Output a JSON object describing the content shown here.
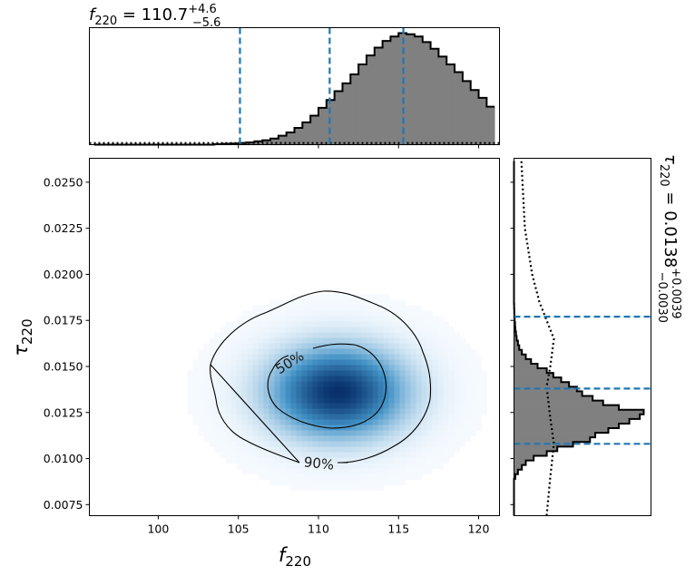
{
  "chart_data": {
    "type": "heatmap",
    "xlabel": {
      "sym": "f",
      "sub": "220"
    },
    "ylabel": {
      "sym": "τ",
      "sub": "220"
    },
    "xlim": [
      95.7,
      121.3
    ],
    "ylim": [
      0.0069,
      0.0263
    ],
    "xticks": [
      "100",
      "105",
      "110",
      "115",
      "120"
    ],
    "xtick_values": [
      100,
      105,
      110,
      115,
      120
    ],
    "yticks": [
      "0.0075",
      "0.0100",
      "0.0125",
      "0.0150",
      "0.0175",
      "0.0200",
      "0.0225",
      "0.0250"
    ],
    "ytick_values": [
      0.0075,
      0.01,
      0.0125,
      0.015,
      0.0175,
      0.02,
      0.0225,
      0.025
    ],
    "density_peak": {
      "x": 111.2,
      "y": 0.0136,
      "sx": 3.1,
      "sy": 0.0018
    },
    "contours": [
      {
        "label": "50%",
        "label_x": 108.4,
        "label_y": 0.0149
      },
      {
        "label": "90%",
        "label_x": 110.0,
        "label_y": 0.0098
      }
    ],
    "top_marginal": {
      "title_prefix": "f",
      "title_sub": "220",
      "title_value": " = 110.7",
      "title_sup": "+4.6",
      "title_low": "−5.6",
      "quantile_lines": [
        105.1,
        110.7,
        115.3
      ],
      "bin_edges_start": 96.0,
      "bin_width": 0.5,
      "counts": [
        0,
        0,
        0,
        0,
        0,
        0,
        0,
        0,
        0,
        0,
        0,
        0,
        0,
        0,
        0,
        0.5,
        0.8,
        1,
        1.5,
        2,
        3,
        4,
        5.5,
        8,
        11,
        15,
        20,
        26,
        33,
        40,
        48,
        55,
        63,
        72,
        80,
        87,
        93,
        97,
        100,
        99,
        97,
        92,
        86,
        79,
        72,
        65,
        57,
        49,
        42,
        34,
        27,
        21,
        15,
        11,
        7.5,
        5,
        3,
        2,
        1.2,
        0.8,
        0.5,
        0.3,
        0,
        0,
        0,
        0,
        0,
        0
      ],
      "prior_level": 1.8
    },
    "right_marginal": {
      "title_prefix": "τ",
      "title_sub": "220",
      "title_value": " = 0.0138",
      "title_sup": "+0.0039",
      "title_low": "−0.0030",
      "quantile_lines": [
        0.0108,
        0.0138,
        0.0177
      ],
      "bin_edges_start": 0.0069,
      "bin_width": 0.00025,
      "counts": [
        0,
        0,
        0,
        0,
        0,
        0,
        0,
        0,
        1,
        3,
        6,
        9,
        15,
        25,
        33,
        45,
        58,
        62,
        72,
        80,
        88,
        96,
        99,
        80,
        68,
        60,
        52,
        48,
        42,
        36,
        30,
        25,
        18,
        13,
        9,
        6,
        4,
        3,
        2,
        1.5,
        1,
        0.8,
        0.5,
        0.3,
        0.2,
        0.1,
        0,
        0,
        0,
        0,
        0,
        0,
        0,
        0,
        0,
        0,
        0,
        0,
        0,
        0,
        0,
        0,
        0,
        0,
        0,
        0,
        0,
        0,
        0,
        0,
        0,
        0,
        0,
        0,
        0,
        0,
        0,
        0
      ],
      "prior_levels": [
        {
          "y": 0.0069,
          "v": 9
        },
        {
          "y": 0.009,
          "v": 10
        },
        {
          "y": 0.0108,
          "v": 11
        },
        {
          "y": 0.0122,
          "v": 10
        },
        {
          "y": 0.0139,
          "v": 9
        },
        {
          "y": 0.015,
          "v": 10
        },
        {
          "y": 0.0165,
          "v": 11
        },
        {
          "y": 0.0175,
          "v": 9
        },
        {
          "y": 0.0185,
          "v": 7
        },
        {
          "y": 0.02,
          "v": 5
        },
        {
          "y": 0.0225,
          "v": 3
        },
        {
          "y": 0.0263,
          "v": 2
        }
      ]
    },
    "colors": {
      "heat_low": "#f7fbff",
      "heat_high": "#08306b",
      "hist_fill": "#808080",
      "quantile": "#1f77b4"
    }
  }
}
